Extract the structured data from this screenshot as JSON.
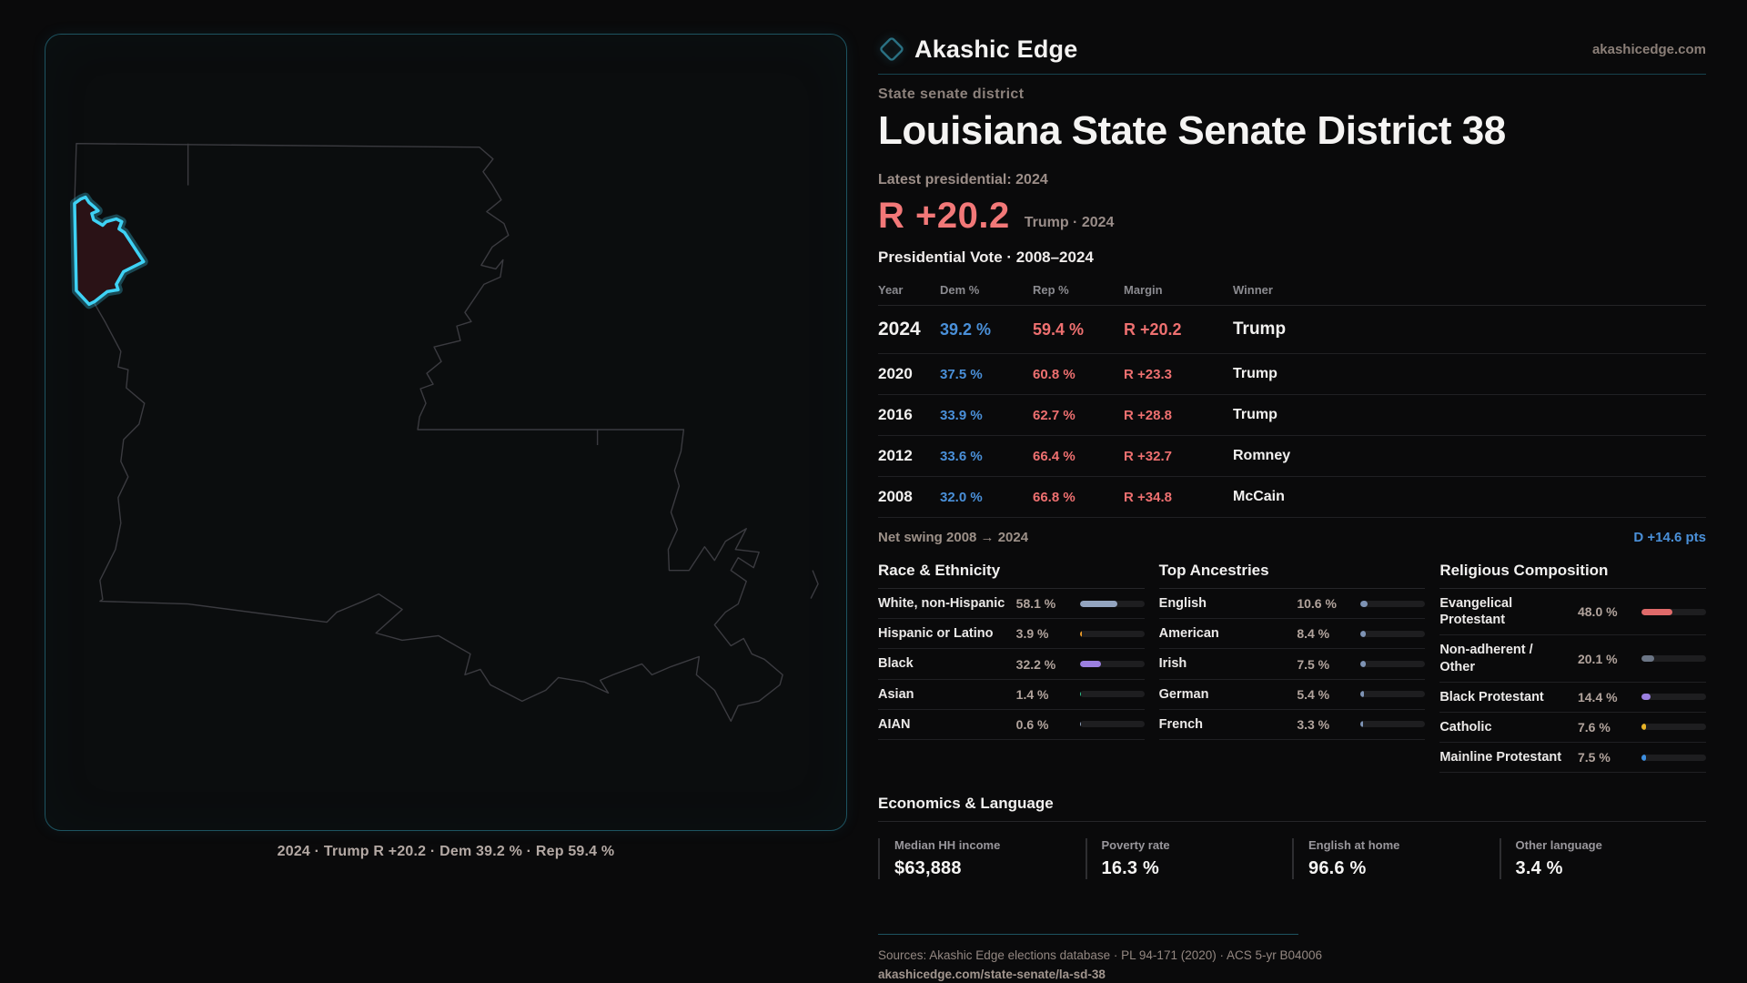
{
  "brand": {
    "name": "Akashic Edge",
    "domain": "akashicedge.com"
  },
  "page": {
    "kicker": "State senate district",
    "title": "Louisiana State Senate District 38"
  },
  "headline": {
    "label": "Latest presidential: 2024",
    "margin": "R +20.2",
    "sub": "Trump · 2024"
  },
  "table": {
    "title": "Presidential Vote · 2008–2024",
    "headers": [
      "Year",
      "Dem %",
      "Rep %",
      "Margin",
      "Winner"
    ],
    "rows": [
      {
        "year": "2024",
        "dem": "39.2 %",
        "rep": "59.4 %",
        "margin": "R +20.2",
        "winner": "Trump",
        "emphasis": true
      },
      {
        "year": "2020",
        "dem": "37.5 %",
        "rep": "60.8 %",
        "margin": "R +23.3",
        "winner": "Trump",
        "emphasis": false
      },
      {
        "year": "2016",
        "dem": "33.9 %",
        "rep": "62.7 %",
        "margin": "R +28.8",
        "winner": "Trump",
        "emphasis": false
      },
      {
        "year": "2012",
        "dem": "33.6 %",
        "rep": "66.4 %",
        "margin": "R +32.7",
        "winner": "Romney",
        "emphasis": false
      },
      {
        "year": "2008",
        "dem": "32.0 %",
        "rep": "66.8 %",
        "margin": "R +34.8",
        "winner": "McCain",
        "emphasis": false
      }
    ],
    "net_swing_label": "Net swing 2008 → 2024",
    "net_swing_value": "D +14.6 pts"
  },
  "demographics": {
    "sections": [
      {
        "title": "Race & Ethnicity",
        "rows": [
          {
            "label": "White, non-Hispanic",
            "value": "58.1 %",
            "pct": 58.1,
            "color": "#93a4bf"
          },
          {
            "label": "Hispanic or Latino",
            "value": "3.9 %",
            "pct": 3.9,
            "color": "#e89a28"
          },
          {
            "label": "Black",
            "value": "32.2 %",
            "pct": 32.2,
            "color": "#9b7fe0"
          },
          {
            "label": "Asian",
            "value": "1.4 %",
            "pct": 1.4,
            "color": "#2ec98f"
          },
          {
            "label": "AIAN",
            "value": "0.6 %",
            "pct": 0.6,
            "color": "#93a4bf"
          }
        ]
      },
      {
        "title": "Top Ancestries",
        "rows": [
          {
            "label": "English",
            "value": "10.6 %",
            "pct": 10.6,
            "color": "#7e93b4"
          },
          {
            "label": "American",
            "value": "8.4 %",
            "pct": 8.4,
            "color": "#7e93b4"
          },
          {
            "label": "Irish",
            "value": "7.5 %",
            "pct": 7.5,
            "color": "#7e93b4"
          },
          {
            "label": "German",
            "value": "5.4 %",
            "pct": 5.4,
            "color": "#7e93b4"
          },
          {
            "label": "French",
            "value": "3.3 %",
            "pct": 3.3,
            "color": "#7e93b4"
          }
        ]
      },
      {
        "title": "Religious Composition",
        "rows": [
          {
            "label": "Evangelical Protestant",
            "value": "48.0 %",
            "pct": 48.0,
            "color": "#e06a6a"
          },
          {
            "label": "Non-adherent / Other",
            "value": "20.1 %",
            "pct": 20.1,
            "color": "#6b7585"
          },
          {
            "label": "Black Protestant",
            "value": "14.4 %",
            "pct": 14.4,
            "color": "#9b7fe0"
          },
          {
            "label": "Catholic",
            "value": "7.6 %",
            "pct": 7.6,
            "color": "#e8b428"
          },
          {
            "label": "Mainline Protestant",
            "value": "7.5 %",
            "pct": 7.5,
            "color": "#3d8fe0"
          }
        ]
      }
    ]
  },
  "economics": {
    "title": "Economics & Language",
    "cards": [
      {
        "label": "Median HH income",
        "value": "$63,888"
      },
      {
        "label": "Poverty rate",
        "value": "16.3 %"
      },
      {
        "label": "English at home",
        "value": "96.6 %"
      },
      {
        "label": "Other language",
        "value": "3.4 %"
      }
    ]
  },
  "map": {
    "caption": "2024 · Trump R +20.2 · Dem 39.2 % · Rep 59.4 %"
  },
  "footer": {
    "sources": "Sources: Akashic Edge elections database · PL 94-171 (2020) · ACS 5-yr B04006",
    "url": "akashicedge.com/state-senate/la-sd-38"
  },
  "colors": {
    "dem_blue": "#4a90d9",
    "rep_red": "#ee7070",
    "district_cyan": "#3ed2f5",
    "panel_teal": "#1d5360",
    "state_outline": "#3b3b40"
  }
}
